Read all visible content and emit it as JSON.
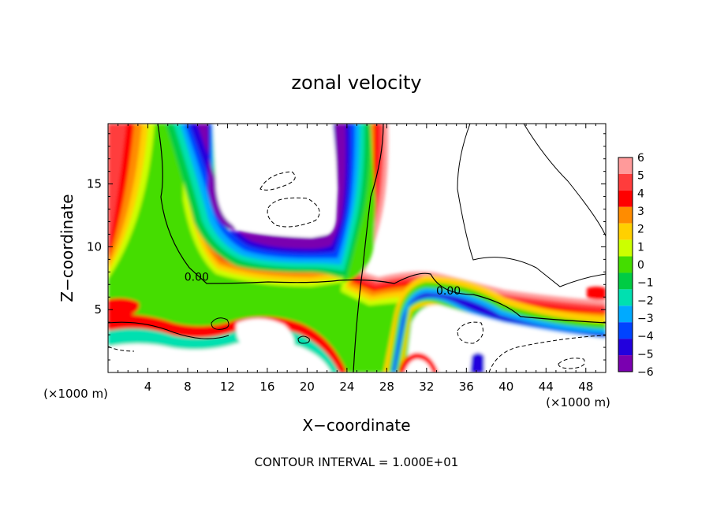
{
  "chart_data": {
    "type": "heatmap",
    "title": "zonal velocity",
    "xlabel": "X−coordinate",
    "ylabel": "Z−coordinate",
    "x_unit_label": "(×1000 m)",
    "y_unit_label": "(×1000 m)",
    "footer": "CONTOUR INTERVAL = 1.000E+01",
    "xlim": [
      0,
      50
    ],
    "ylim": [
      0,
      19.8
    ],
    "x_ticks": [
      4,
      8,
      12,
      16,
      20,
      24,
      28,
      32,
      36,
      40,
      44,
      48
    ],
    "y_ticks": [
      5,
      10,
      15
    ],
    "colorbar": {
      "levels": [
        6,
        5,
        4,
        3,
        2,
        1,
        0,
        -1,
        -2,
        -3,
        -4,
        -5,
        -6
      ],
      "level_labels": [
        "6",
        "5",
        "4",
        "3",
        "2",
        "1",
        "0",
        "−1",
        "−2",
        "−3",
        "−4",
        "−5",
        "−6"
      ],
      "colors": [
        "#ff9a9a",
        "#ff3c3c",
        "#ff0000",
        "#ff8c00",
        "#ffd000",
        "#ccff00",
        "#44dd00",
        "#00cc44",
        "#00e0b0",
        "#00aaff",
        "#0044ff",
        "#2200dd",
        "#7a00b0"
      ]
    },
    "contour_labels": [
      {
        "text": "0.00",
        "x": 8.9,
        "y": 7.3
      },
      {
        "text": "0.00",
        "x": 34.2,
        "y": 6.2
      }
    ]
  }
}
